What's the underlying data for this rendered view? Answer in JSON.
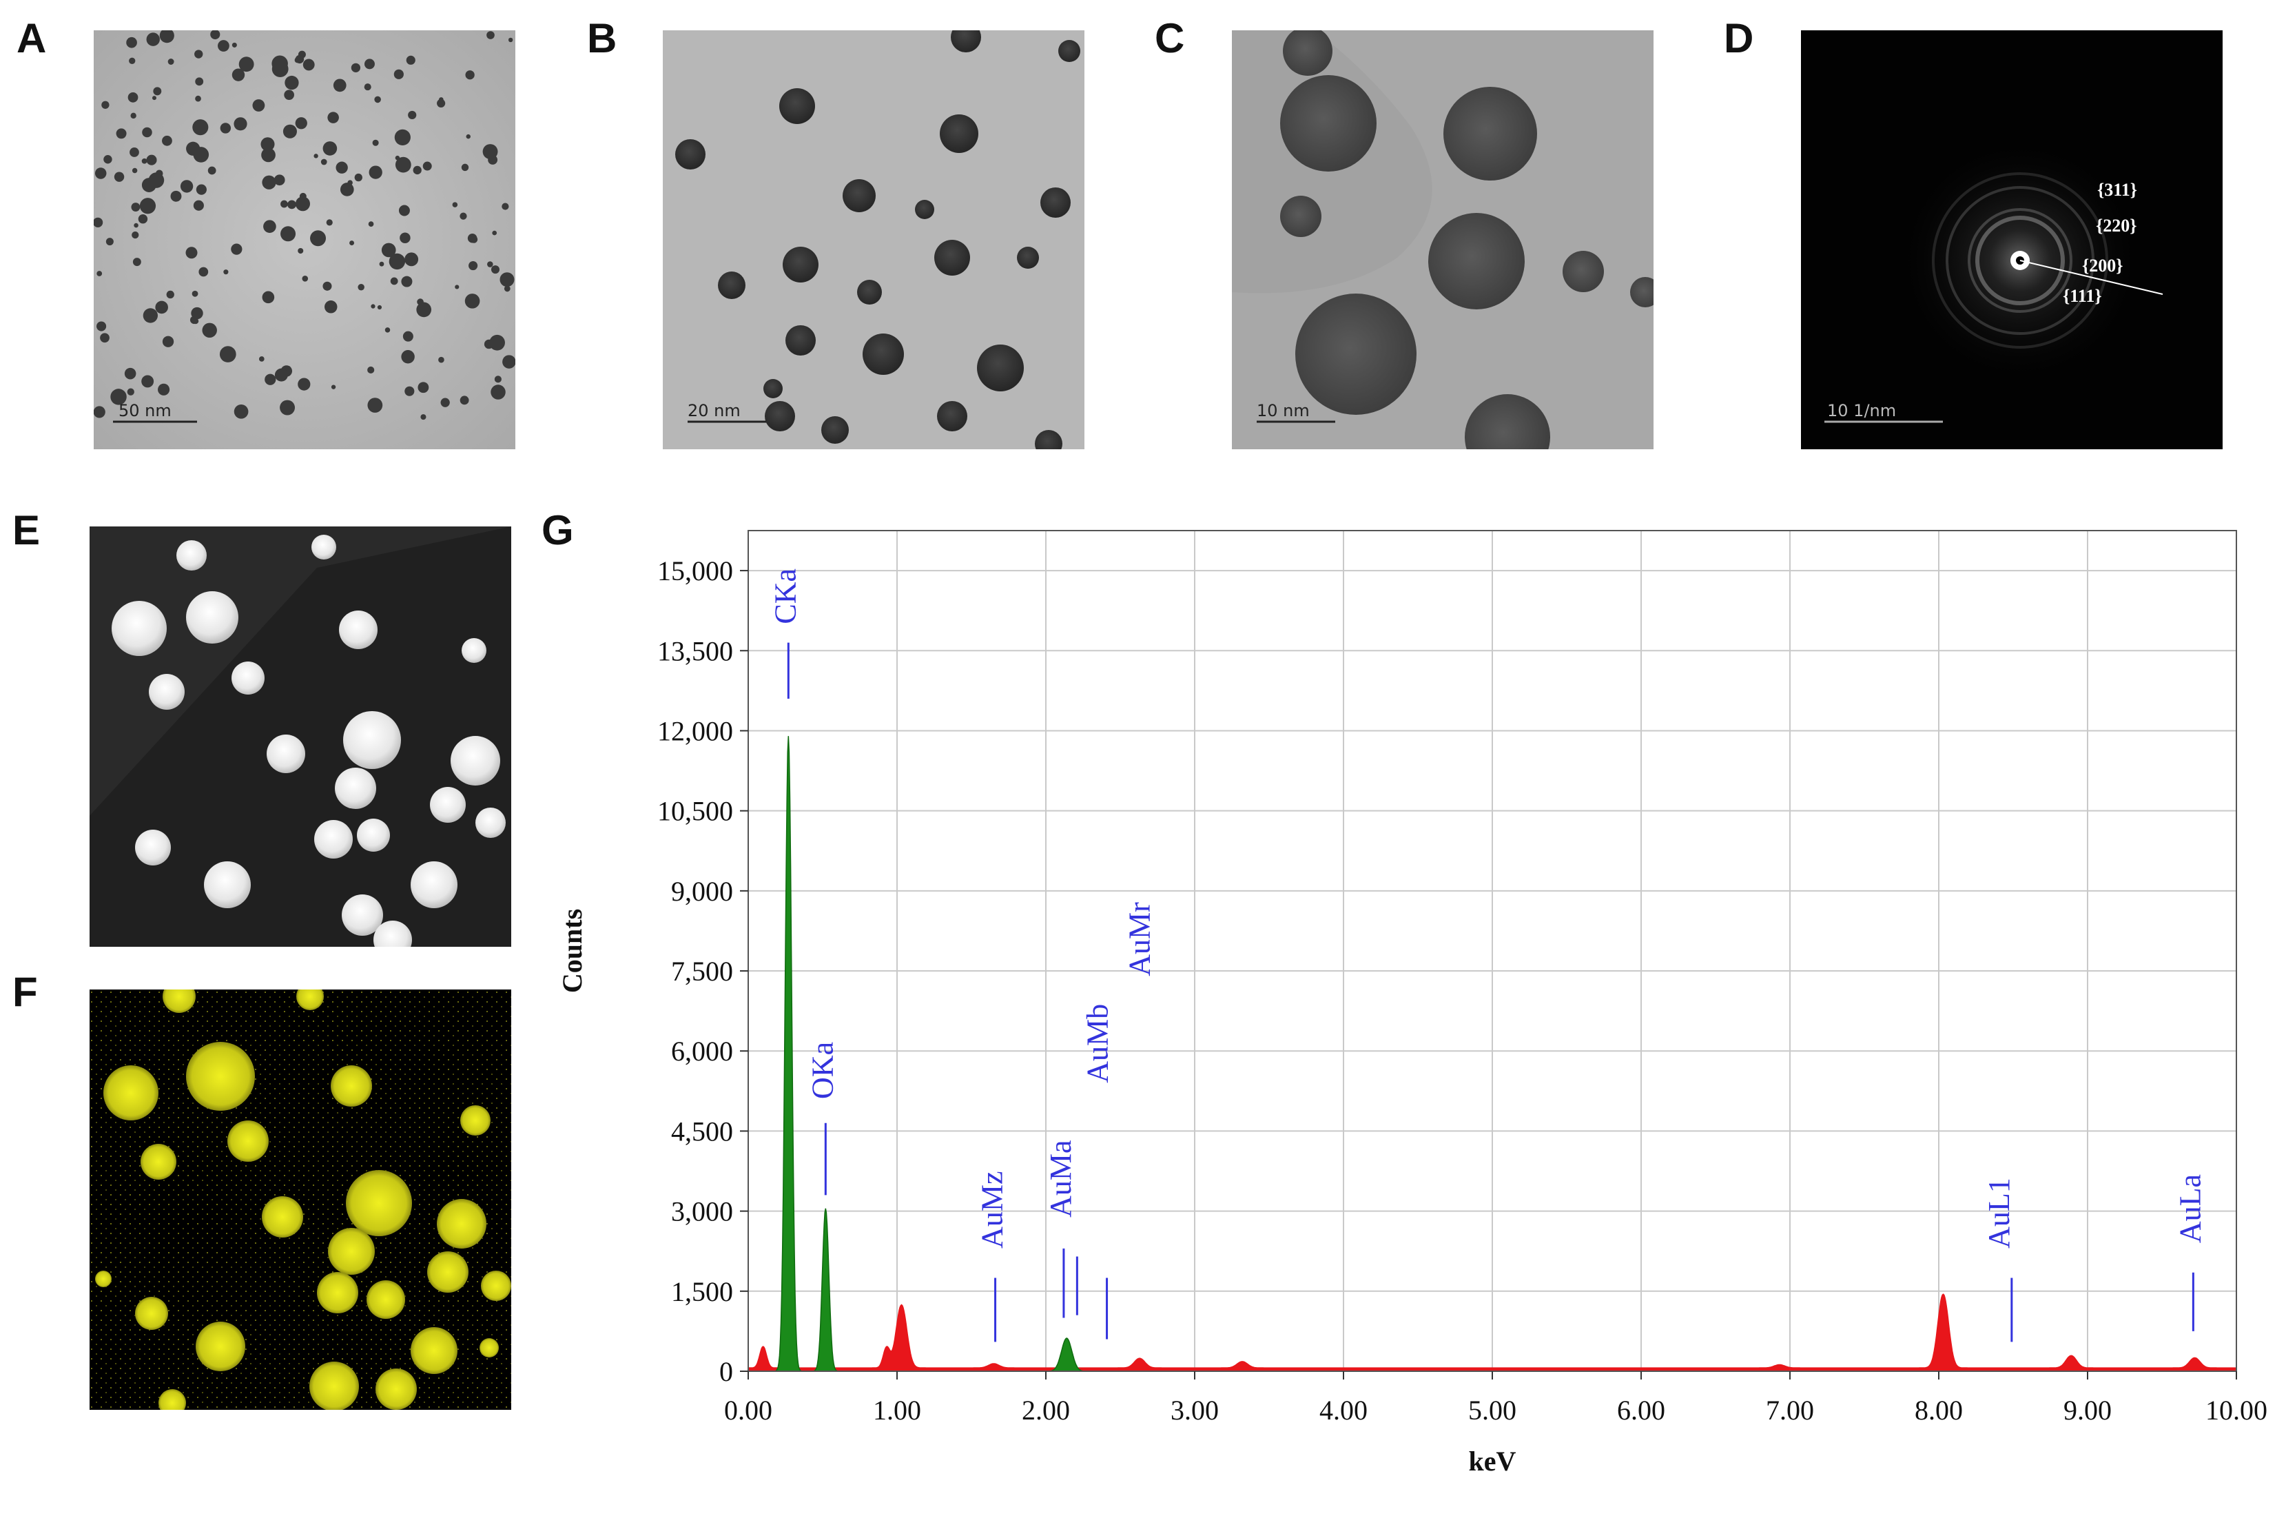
{
  "panels": {
    "A": {
      "letter": "A",
      "scale_label": "50 nm"
    },
    "B": {
      "letter": "B",
      "scale_label": "20 nm"
    },
    "C": {
      "letter": "C",
      "scale_label": "10 nm"
    },
    "D": {
      "letter": "D",
      "scale_label": "10 1/nm",
      "ring_labels": [
        "{311}",
        "{220}",
        "{200}",
        "{111}"
      ]
    },
    "E": {
      "letter": "E"
    },
    "F": {
      "letter": "F"
    },
    "G": {
      "letter": "G"
    }
  },
  "colors": {
    "eds_element_peaks": "#1a8a1a",
    "eds_background_spectrum": "#e8161b",
    "eds_marker_text": "#3333dd",
    "gold_map": "#e6e619"
  },
  "chart_data": {
    "type": "area",
    "xlabel": "keV",
    "ylabel": "Counts",
    "xlim": [
      0,
      10
    ],
    "ylim": [
      0,
      15750
    ],
    "grid": true,
    "x_ticks": [
      0,
      1,
      2,
      3,
      4,
      5,
      6,
      7,
      8,
      9,
      10
    ],
    "x_tick_labels": [
      "0.00",
      "1.00",
      "2.00",
      "3.00",
      "4.00",
      "5.00",
      "6.00",
      "7.00",
      "8.00",
      "9.00",
      "10.00"
    ],
    "y_ticks": [
      0,
      1500,
      3000,
      4500,
      6000,
      7500,
      9000,
      10500,
      12000,
      13500,
      15000
    ],
    "y_tick_labels": [
      "0",
      "1,500",
      "3,000",
      "4,500",
      "6,000",
      "7,500",
      "9,000",
      "10,500",
      "12,000",
      "13,500",
      "15,000"
    ],
    "series": [
      {
        "peaks": [
          {
            "x": 0.27,
            "y": 11900
          },
          {
            "x": 0.52,
            "y": 3050
          },
          {
            "x": 2.14,
            "y": 620
          }
        ]
      },
      {
        "peaks": [
          {
            "x": 0.1,
            "y": 400
          },
          {
            "x": 0.93,
            "y": 380
          },
          {
            "x": 1.03,
            "y": 1180
          },
          {
            "x": 1.65,
            "y": 80
          },
          {
            "x": 2.63,
            "y": 180
          },
          {
            "x": 3.32,
            "y": 120
          },
          {
            "x": 6.93,
            "y": 60
          },
          {
            "x": 8.03,
            "y": 1380
          },
          {
            "x": 8.89,
            "y": 230
          },
          {
            "x": 9.72,
            "y": 190
          }
        ]
      }
    ],
    "annotations": [
      {
        "label": "CKa",
        "x": 0.27
      },
      {
        "label": "OKa",
        "x": 0.52
      },
      {
        "label": "AuMz",
        "x": 1.66
      },
      {
        "label": "AuMa",
        "x": 2.12
      },
      {
        "label": "AuMb",
        "x": 2.21
      },
      {
        "label": "AuMr",
        "x": 2.41
      },
      {
        "label": "AuL1",
        "x": 8.49
      },
      {
        "label": "AuLa",
        "x": 9.71
      }
    ]
  }
}
